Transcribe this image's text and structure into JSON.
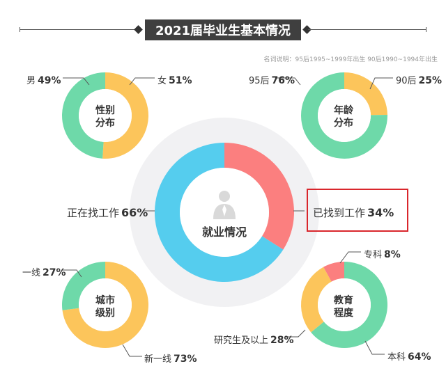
{
  "title": "2021届毕业生基本情况",
  "note": "名词说明：95后1995~1999年出生  90后1990~1994年出生",
  "colors": {
    "green": "#6ed9a9",
    "yellow": "#fcc55b",
    "blue": "#55cdee",
    "red": "#fb7f7f",
    "pink": "#fb7f7f",
    "halo": "#f1f1f3",
    "highlight": "#d9262c"
  },
  "chart_data": [
    {
      "type": "pie",
      "center_label": [
        "性别",
        "分布"
      ],
      "slices": [
        {
          "label": "女",
          "pct": "51%",
          "value": 51,
          "color": "#fcc55b"
        },
        {
          "label": "男",
          "pct": "49%",
          "value": 49,
          "color": "#6ed9a9"
        }
      ]
    },
    {
      "type": "pie",
      "center_label": [
        "年龄",
        "分布"
      ],
      "slices": [
        {
          "label": "90后",
          "pct": "25%",
          "value": 25,
          "color": "#fcc55b"
        },
        {
          "label": "95后",
          "pct": "76%",
          "value": 76,
          "color": "#6ed9a9"
        }
      ]
    },
    {
      "type": "pie",
      "center_label": [
        "就业情况"
      ],
      "slices": [
        {
          "label": "已找到工作",
          "pct": "34%",
          "value": 34,
          "color": "#fb7f7f"
        },
        {
          "label": "正在找工作",
          "pct": "66%",
          "value": 66,
          "color": "#55cdee"
        }
      ]
    },
    {
      "type": "pie",
      "center_label": [
        "城市",
        "级别"
      ],
      "slices": [
        {
          "label": "新一线",
          "pct": "73%",
          "value": 73,
          "color": "#fcc55b"
        },
        {
          "label": "一线",
          "pct": "27%",
          "value": 27,
          "color": "#6ed9a9"
        }
      ]
    },
    {
      "type": "pie",
      "center_label": [
        "教育",
        "程度"
      ],
      "slices": [
        {
          "label": "本科",
          "pct": "64%",
          "value": 64,
          "color": "#6ed9a9"
        },
        {
          "label": "研究生及以上",
          "pct": "28%",
          "value": 28,
          "color": "#fcc55b"
        },
        {
          "label": "专科",
          "pct": "8%",
          "value": 8,
          "color": "#fb7f7f"
        }
      ]
    }
  ]
}
